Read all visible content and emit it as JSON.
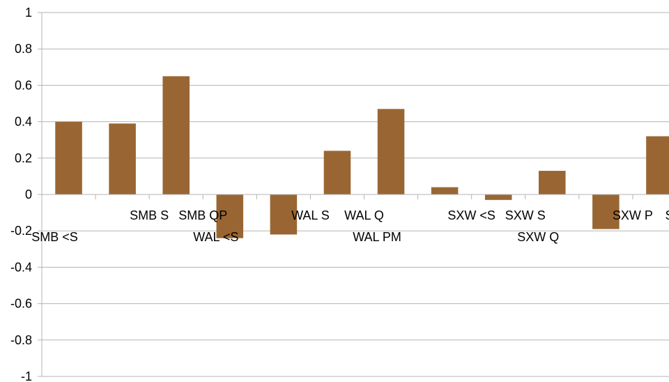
{
  "chart_data": {
    "type": "bar",
    "categories": [
      "SMB <S",
      "SMB S",
      "SMB QP",
      "WAL <S",
      "WAL S",
      "WAL Q",
      "WAL PM",
      "SXW <S",
      "SXW S",
      "SXW Q",
      "SXW P",
      "SXW M"
    ],
    "category_labels": [
      "SMB <S",
      "SMB S",
      "SMB QP",
      "WAL <S",
      "WAL S",
      "WAL Q",
      "WAL PM",
      "SXW <S",
      "SXW S",
      "SXW Q",
      "SXW P",
      "SXW M"
    ],
    "values": [
      0.4,
      0.39,
      0.65,
      -0.24,
      -0.22,
      0.24,
      0.47,
      0.04,
      -0.03,
      0.13,
      -0.19,
      0.32
    ],
    "ylim": [
      -1,
      1
    ],
    "yticks": [
      1,
      0.8,
      0.6,
      0.4,
      0.2,
      0,
      -0.2,
      -0.4,
      -0.6,
      -0.8,
      -1
    ],
    "ytick_labels": [
      "1",
      "0.8",
      "0.6",
      "0.4",
      "0.2",
      "0",
      "-0.2",
      "-0.4",
      "-0.6",
      "-0.8",
      "-1"
    ],
    "title": "",
    "xlabel": "",
    "ylabel": "",
    "grid": true,
    "legend": "none",
    "bar_color": "#996633",
    "grid_color": "#b3b3b3"
  }
}
